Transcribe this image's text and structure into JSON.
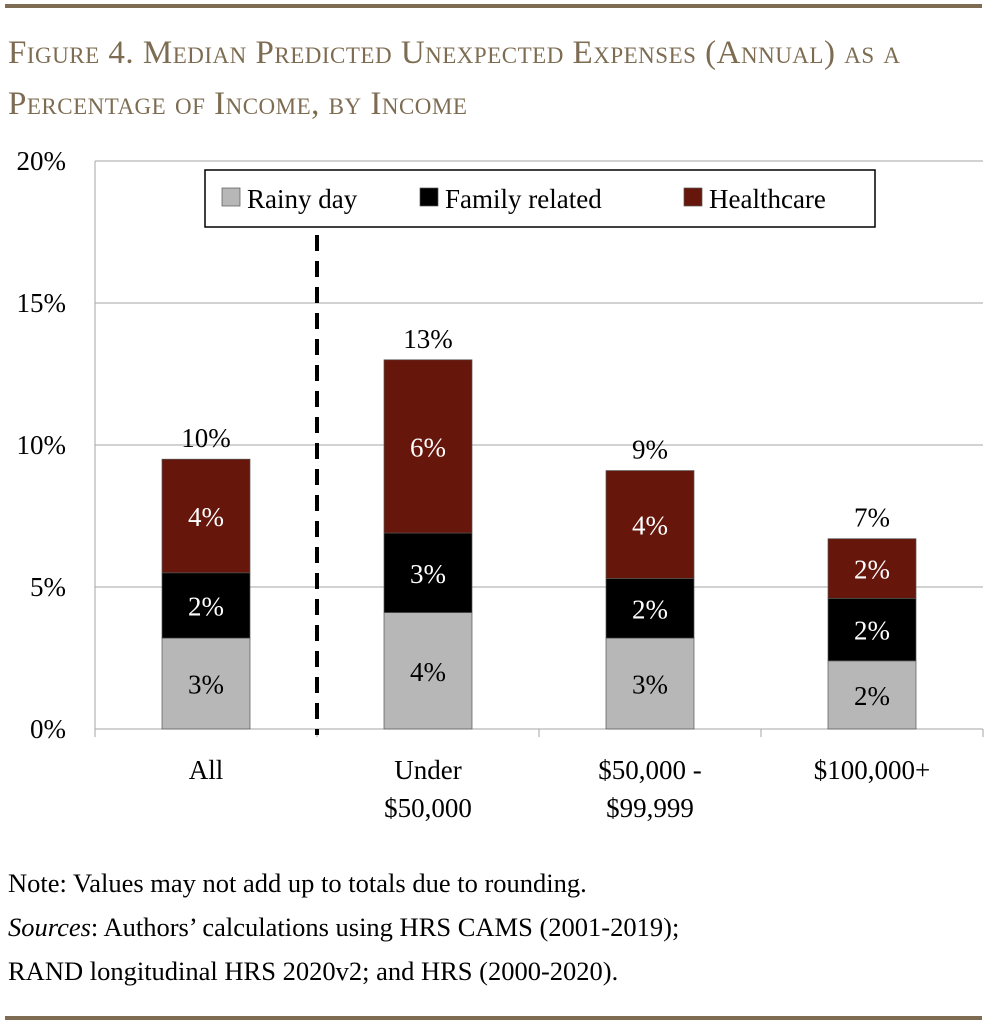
{
  "title": "Figure 4. Median Predicted Unexpected Expenses (Annual) as a Percentage of Income, by Income",
  "chart_data": {
    "type": "bar",
    "stacked": true,
    "categories": [
      "All",
      "Under $50,000",
      "$50,000 - $99,999",
      "$100,000+"
    ],
    "category_lines": [
      [
        "All"
      ],
      [
        "Under",
        "$50,000"
      ],
      [
        "$50,000 -",
        "$99,999"
      ],
      [
        "$100,000+"
      ]
    ],
    "series": [
      {
        "name": "Rainy day",
        "color": "#b7b7b7",
        "values": [
          3.2,
          4.1,
          3.2,
          2.4
        ],
        "labels": [
          "3%",
          "4%",
          "3%",
          "2%"
        ],
        "label_color": "#000000"
      },
      {
        "name": "Family related",
        "color": "#000000",
        "values": [
          2.3,
          2.8,
          2.1,
          2.2
        ],
        "labels": [
          "2%",
          "3%",
          "2%",
          "2%"
        ],
        "label_color": "#ffffff"
      },
      {
        "name": "Healthcare",
        "color": "#66160b",
        "values": [
          4.0,
          6.1,
          3.8,
          2.1
        ],
        "labels": [
          "4%",
          "6%",
          "4%",
          "2%"
        ],
        "label_color": "#ffffff"
      }
    ],
    "totals": [
      "10%",
      "13%",
      "9%",
      "7%"
    ],
    "ylim": [
      0,
      20
    ],
    "yticks": [
      "0%",
      "5%",
      "10%",
      "15%",
      "20%"
    ],
    "ytick_values": [
      0,
      5,
      10,
      15,
      20
    ],
    "grid": true,
    "legend_position": "top-center",
    "separator_after_category": "All",
    "xlabel": "",
    "ylabel": ""
  },
  "note": "Note: Values may not add up to totals due to rounding.",
  "sources_label": "Sources",
  "sources_text": ": Authors’ calculations using HRS CAMS (2001-2019);",
  "sources_text2": "RAND longitudinal HRS 2020v2; and HRS (2000-2020)."
}
